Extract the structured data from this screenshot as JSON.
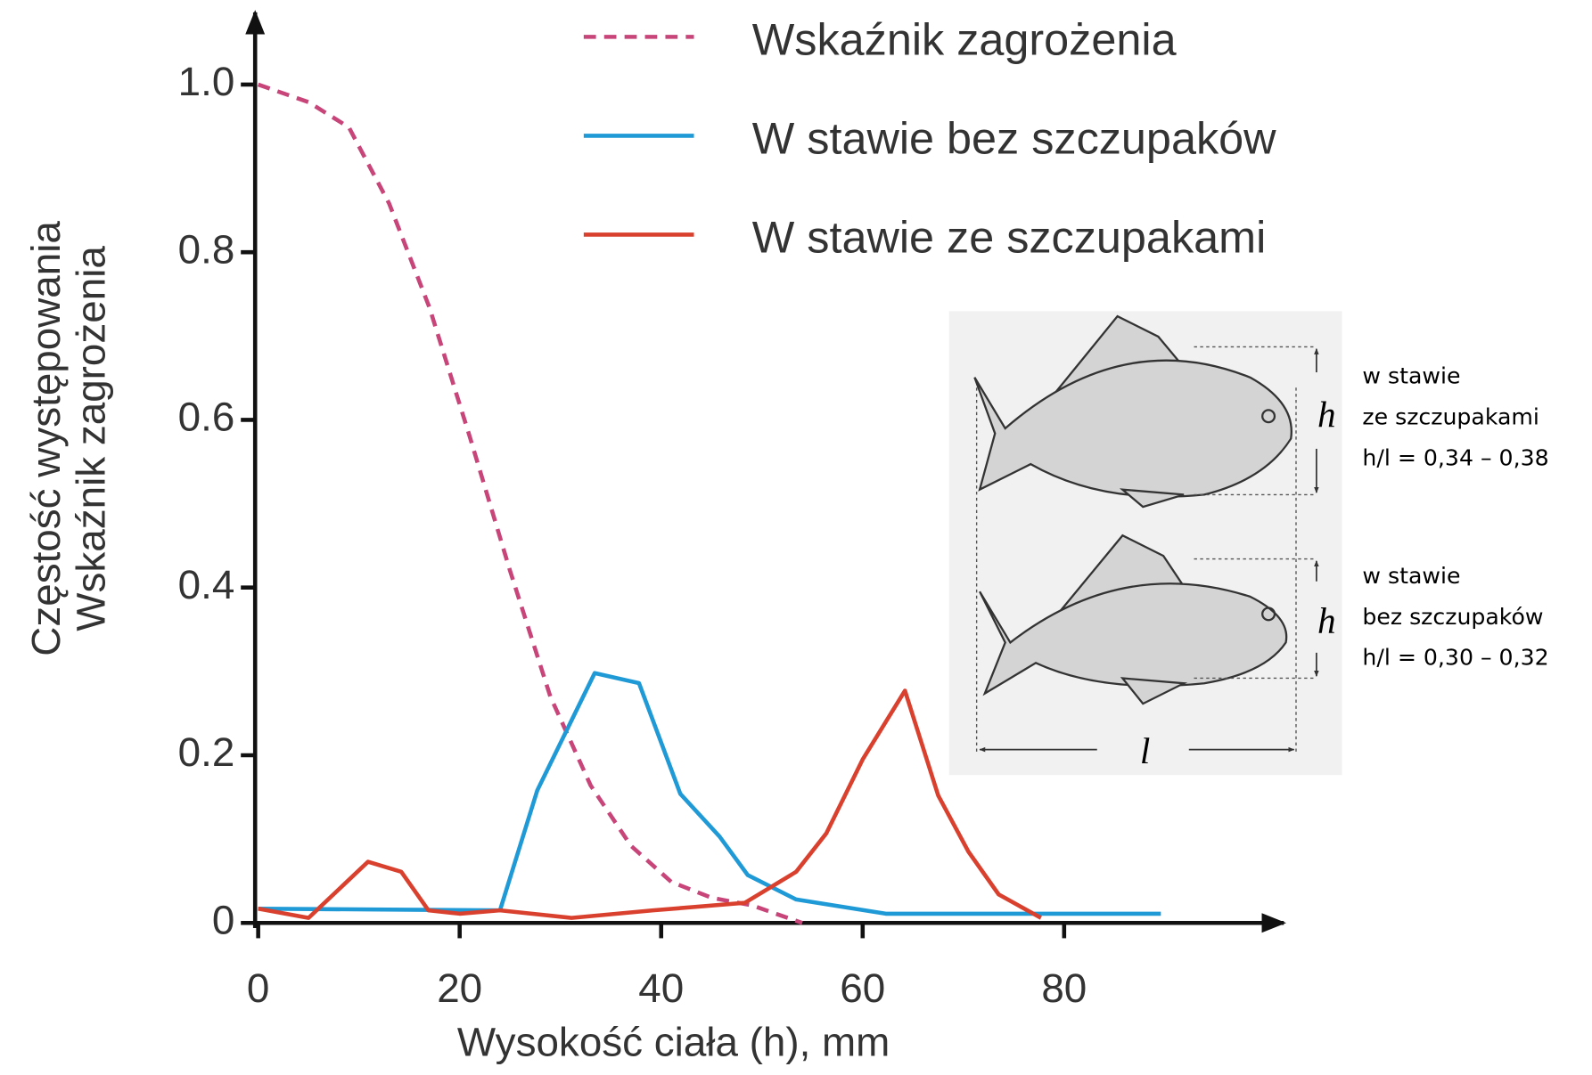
{
  "chart_data": {
    "type": "line",
    "ylabel": [
      "Częstość występowania",
      "Wskaźnik zagrożenia"
    ],
    "xlabel": "Wysokość ciała (h), mm",
    "xlim": [
      0,
      101.5
    ],
    "ylim": [
      0,
      1.08
    ],
    "xticks": [
      0,
      20,
      40,
      60,
      80
    ],
    "yticks": [
      0,
      0.2,
      0.4,
      0.6,
      0.8,
      {
        "value": 1,
        "label": "1.0"
      }
    ],
    "legend": "top",
    "series": [
      {
        "name": "Wskaźnik zagrożenia",
        "color": "#c8457a",
        "dashed": true,
        "x": [
          0,
          5,
          9,
          13,
          17,
          21,
          25,
          29,
          33,
          37,
          41,
          45,
          49,
          54
        ],
        "values": [
          1.0,
          0.979,
          0.949,
          0.858,
          0.734,
          0.58,
          0.42,
          0.27,
          0.164,
          0.092,
          0.049,
          0.03,
          0.021,
          0
        ]
      },
      {
        "name": "W stawie bez szczupaków",
        "color": "#1f9ad6",
        "dashed": false,
        "x": [
          0,
          24,
          27.7,
          33.4,
          37.8,
          41.9,
          45.8,
          48.6,
          53.4,
          62.3,
          89.6
        ],
        "values": [
          0.017,
          0.015,
          0.158,
          0.298,
          0.286,
          0.154,
          0.103,
          0.057,
          0.028,
          0.011,
          0.011
        ]
      },
      {
        "name": "W stawie ze szczupakami",
        "color": "#d9402e",
        "dashed": false,
        "x": [
          0,
          5,
          10.9,
          14.2,
          16.9,
          20,
          24,
          31.1,
          39.2,
          48.3,
          53.4,
          56.4,
          60,
          64.2,
          67.5,
          70.5,
          73.5,
          77.7
        ],
        "values": [
          0.017,
          0.006,
          0.073,
          0.061,
          0.015,
          0.011,
          0.015,
          0.006,
          0.015,
          0.024,
          0.061,
          0.107,
          0.195,
          0.277,
          0.152,
          0.085,
          0.034,
          0.006
        ]
      }
    ],
    "annotations": {
      "top": [
        "w stawie",
        "ze szczupakami",
        "h/l = 0,34 – 0,38"
      ],
      "bottom": [
        "w stawie",
        "bez szczupaków",
        "h/l = 0,30 – 0,32"
      ],
      "height_symbol": "h",
      "length_symbol": "l"
    }
  }
}
